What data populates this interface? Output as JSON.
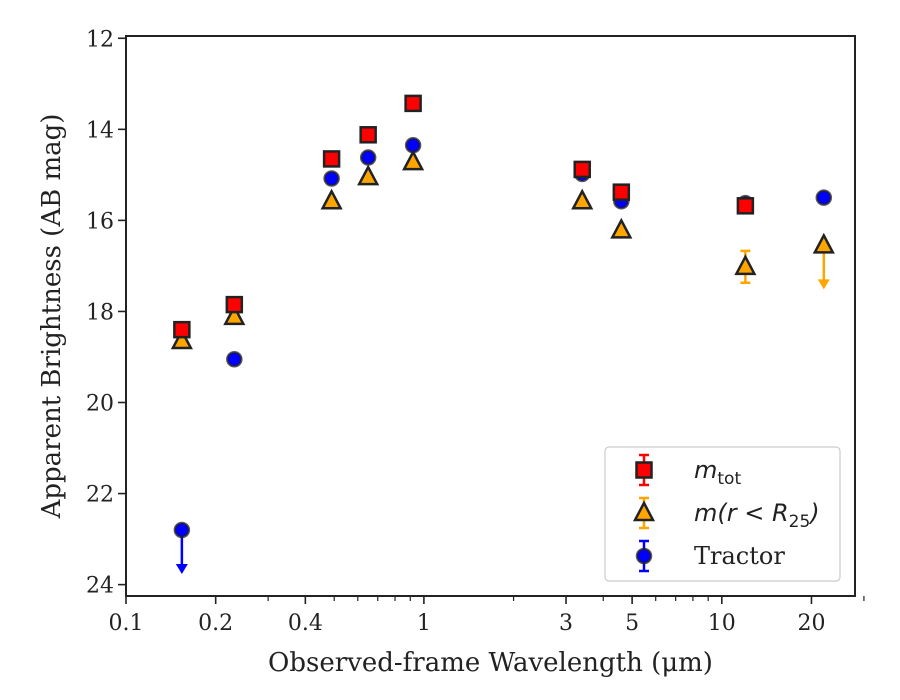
{
  "chart_data": {
    "type": "scatter",
    "xlabel": "Observed-frame Wavelength (μm)",
    "ylabel": "Apparent Brightness (AB mag)",
    "xscale": "log",
    "xlim": [
      0.1,
      28
    ],
    "ylim": [
      24.25,
      11.95
    ],
    "y_inverted": true,
    "xticks": [
      {
        "value": 0.1,
        "label": "0.1"
      },
      {
        "value": 0.2,
        "label": "0.2"
      },
      {
        "value": 0.4,
        "label": "0.4"
      },
      {
        "value": 1,
        "label": "1"
      },
      {
        "value": 3,
        "label": "3"
      },
      {
        "value": 5,
        "label": "5"
      },
      {
        "value": 10,
        "label": "10"
      },
      {
        "value": 20,
        "label": "20"
      }
    ],
    "xminor": [
      0.3,
      0.5,
      0.6,
      0.7,
      0.8,
      0.9,
      2,
      4,
      6,
      7,
      8,
      9,
      30
    ],
    "yticks": [
      {
        "value": 12,
        "label": "12"
      },
      {
        "value": 14,
        "label": "14"
      },
      {
        "value": 16,
        "label": "16"
      },
      {
        "value": 18,
        "label": "18"
      },
      {
        "value": 20,
        "label": "20"
      },
      {
        "value": 22,
        "label": "22"
      },
      {
        "value": 24,
        "label": "24"
      }
    ],
    "grid": false,
    "legend_position": "bottom-right",
    "series": [
      {
        "name": "m_tot",
        "legend_base": "m",
        "legend_sub": "tot",
        "marker": "square",
        "color": "#ff0000",
        "points": [
          {
            "x": 0.154,
            "y": 18.4
          },
          {
            "x": 0.231,
            "y": 17.85
          },
          {
            "x": 0.49,
            "y": 14.65
          },
          {
            "x": 0.65,
            "y": 14.12
          },
          {
            "x": 0.92,
            "y": 13.43
          },
          {
            "x": 3.4,
            "y": 14.88
          },
          {
            "x": 4.6,
            "y": 15.38
          },
          {
            "x": 12.0,
            "y": 15.68
          }
        ]
      },
      {
        "name": "m(r < R_25)",
        "legend_base": "m(r < R",
        "legend_sub": "25",
        "legend_tail": ")",
        "marker": "triangle",
        "color": "#ffa500",
        "points": [
          {
            "x": 0.154,
            "y": 18.65
          },
          {
            "x": 0.231,
            "y": 18.12
          },
          {
            "x": 0.49,
            "y": 15.58
          },
          {
            "x": 0.65,
            "y": 15.05
          },
          {
            "x": 0.92,
            "y": 14.72
          },
          {
            "x": 3.4,
            "y": 15.58
          },
          {
            "x": 4.6,
            "y": 16.22
          },
          {
            "x": 12.0,
            "y": 17.02,
            "err": 0.35
          },
          {
            "x": 22.0,
            "y": 16.55,
            "upper_limit": true
          }
        ]
      },
      {
        "name": "Tractor",
        "marker": "circle",
        "color": "#0000ff",
        "points": [
          {
            "x": 0.154,
            "y": 22.8,
            "upper_limit": true
          },
          {
            "x": 0.231,
            "y": 19.05
          },
          {
            "x": 0.49,
            "y": 15.08
          },
          {
            "x": 0.65,
            "y": 14.62
          },
          {
            "x": 0.92,
            "y": 14.35
          },
          {
            "x": 3.4,
            "y": 14.98
          },
          {
            "x": 4.6,
            "y": 15.58
          },
          {
            "x": 12.0,
            "y": 15.62
          },
          {
            "x": 22.0,
            "y": 15.5
          }
        ]
      }
    ]
  }
}
